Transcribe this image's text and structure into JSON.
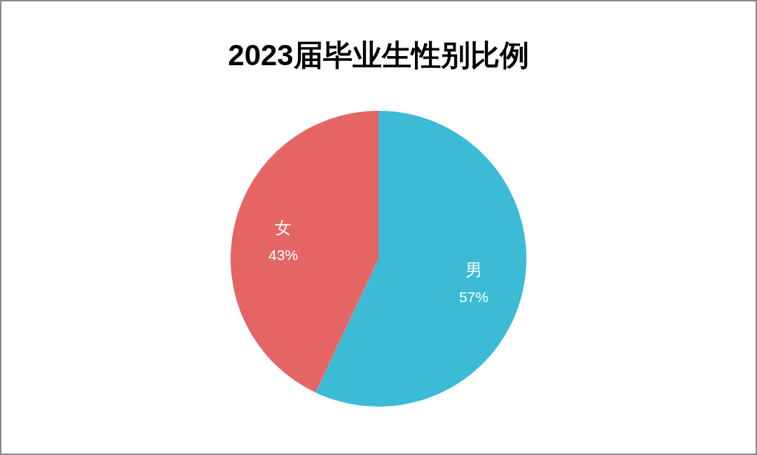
{
  "chart_data": {
    "type": "pie",
    "title": "2023届毕业生性别比例",
    "categories": [
      "男",
      "女"
    ],
    "values": [
      57,
      43
    ],
    "colors": [
      "#3bbbd5",
      "#e56565"
    ],
    "value_labels": [
      "57%",
      "43%"
    ],
    "legend": false
  }
}
